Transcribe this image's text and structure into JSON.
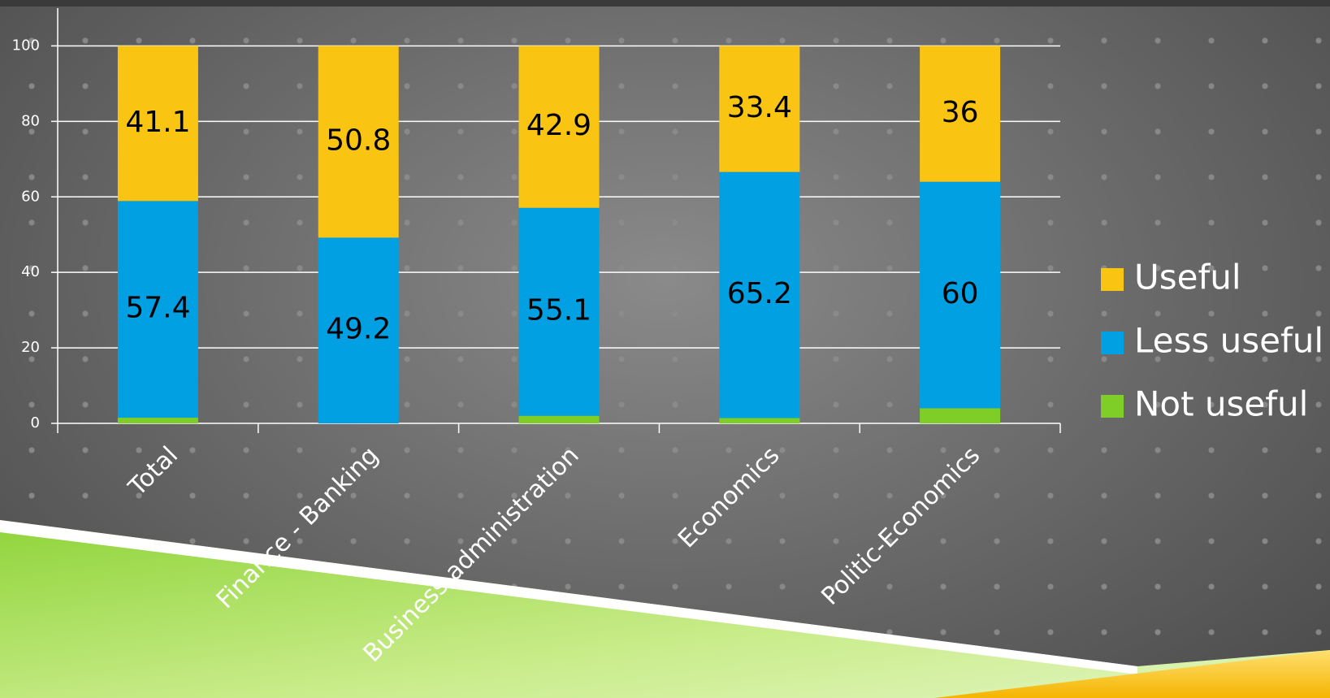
{
  "chart_data": {
    "type": "stacked_bar",
    "categories": [
      "Total",
      "Finance - Banking",
      "Business administration",
      "Economics",
      "Politic-Economics"
    ],
    "series": [
      {
        "name": "Useful",
        "color": "#f9c412",
        "values": [
          41.1,
          50.8,
          42.9,
          33.4,
          36
        ]
      },
      {
        "name": "Less useful",
        "color": "#00a0e3",
        "values": [
          57.4,
          49.2,
          55.1,
          65.2,
          60
        ]
      },
      {
        "name": "Not useful",
        "color": "#7fce27",
        "values": [
          1.5,
          0,
          2,
          1.4,
          4
        ]
      }
    ],
    "ylim": [
      0,
      110
    ],
    "yticks": [
      0,
      20,
      40,
      60,
      80,
      100
    ],
    "grid": true,
    "legend": "right"
  }
}
